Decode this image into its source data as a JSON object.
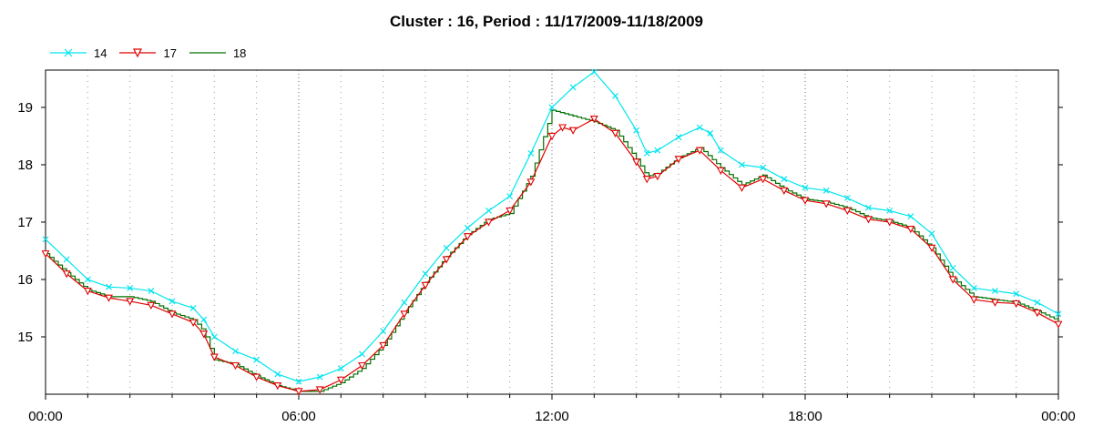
{
  "chart_data": {
    "type": "line",
    "title": "Cluster : 16, Period : 11/17/2009-11/18/2009",
    "xlabel": "",
    "ylabel": "",
    "x_ticks": [
      "00:00",
      "06:00",
      "12:00",
      "18:00",
      "00:00"
    ],
    "x_tick_hours": [
      0,
      6,
      12,
      18,
      24
    ],
    "xlim": [
      0,
      24
    ],
    "ylim": [
      14.0,
      19.65
    ],
    "y_ticks": [
      15,
      16,
      17,
      18,
      19
    ],
    "grid": "dotted",
    "legend": "top-left",
    "series": [
      {
        "name": "14",
        "color": "#00e5ee",
        "marker": "x",
        "points": [
          [
            0,
            16.7
          ],
          [
            0.5,
            16.35
          ],
          [
            1,
            16.0
          ],
          [
            1.5,
            15.87
          ],
          [
            2,
            15.85
          ],
          [
            2.5,
            15.8
          ],
          [
            3,
            15.62
          ],
          [
            3.5,
            15.5
          ],
          [
            3.75,
            15.3
          ],
          [
            4,
            15.0
          ],
          [
            4.5,
            14.75
          ],
          [
            5,
            14.6
          ],
          [
            5.5,
            14.35
          ],
          [
            6,
            14.22
          ],
          [
            6.5,
            14.3
          ],
          [
            7,
            14.45
          ],
          [
            7.5,
            14.7
          ],
          [
            8,
            15.1
          ],
          [
            8.5,
            15.6
          ],
          [
            9,
            16.1
          ],
          [
            9.5,
            16.55
          ],
          [
            10,
            16.9
          ],
          [
            10.5,
            17.2
          ],
          [
            11,
            17.45
          ],
          [
            11.5,
            18.2
          ],
          [
            12,
            19.0
          ],
          [
            12.5,
            19.35
          ],
          [
            13,
            19.62
          ],
          [
            13.5,
            19.2
          ],
          [
            14,
            18.6
          ],
          [
            14.25,
            18.2
          ],
          [
            14.5,
            18.25
          ],
          [
            15,
            18.48
          ],
          [
            15.5,
            18.65
          ],
          [
            15.75,
            18.55
          ],
          [
            16,
            18.25
          ],
          [
            16.5,
            18.0
          ],
          [
            17,
            17.95
          ],
          [
            17.5,
            17.75
          ],
          [
            18,
            17.6
          ],
          [
            18.5,
            17.55
          ],
          [
            19,
            17.42
          ],
          [
            19.5,
            17.25
          ],
          [
            20,
            17.2
          ],
          [
            20.5,
            17.1
          ],
          [
            21,
            16.8
          ],
          [
            21.5,
            16.2
          ],
          [
            22,
            15.85
          ],
          [
            22.5,
            15.8
          ],
          [
            23,
            15.75
          ],
          [
            23.5,
            15.6
          ],
          [
            24,
            15.4
          ]
        ]
      },
      {
        "name": "17",
        "color": "#e00000",
        "marker": "triangle-down",
        "points": [
          [
            0,
            16.45
          ],
          [
            0.5,
            16.1
          ],
          [
            1,
            15.8
          ],
          [
            1.5,
            15.68
          ],
          [
            2,
            15.62
          ],
          [
            2.5,
            15.55
          ],
          [
            3,
            15.4
          ],
          [
            3.5,
            15.25
          ],
          [
            3.75,
            15.05
          ],
          [
            4,
            14.65
          ],
          [
            4.5,
            14.5
          ],
          [
            5,
            14.3
          ],
          [
            5.5,
            14.15
          ],
          [
            6,
            14.05
          ],
          [
            6.5,
            14.08
          ],
          [
            7,
            14.25
          ],
          [
            7.5,
            14.5
          ],
          [
            8,
            14.85
          ],
          [
            8.5,
            15.4
          ],
          [
            9,
            15.9
          ],
          [
            9.5,
            16.35
          ],
          [
            10,
            16.75
          ],
          [
            10.5,
            17.0
          ],
          [
            11,
            17.2
          ],
          [
            11.5,
            17.7
          ],
          [
            12,
            18.5
          ],
          [
            12.25,
            18.65
          ],
          [
            12.5,
            18.6
          ],
          [
            13,
            18.8
          ],
          [
            13.5,
            18.55
          ],
          [
            14,
            18.05
          ],
          [
            14.25,
            17.75
          ],
          [
            14.5,
            17.8
          ],
          [
            15,
            18.1
          ],
          [
            15.5,
            18.25
          ],
          [
            16,
            17.9
          ],
          [
            16.5,
            17.6
          ],
          [
            17,
            17.75
          ],
          [
            17.5,
            17.55
          ],
          [
            18,
            17.38
          ],
          [
            18.5,
            17.32
          ],
          [
            19,
            17.2
          ],
          [
            19.5,
            17.05
          ],
          [
            20,
            17.0
          ],
          [
            20.5,
            16.88
          ],
          [
            21,
            16.55
          ],
          [
            21.5,
            16.0
          ],
          [
            22,
            15.65
          ],
          [
            22.5,
            15.6
          ],
          [
            23,
            15.58
          ],
          [
            23.5,
            15.42
          ],
          [
            24,
            15.22
          ]
        ]
      },
      {
        "name": "18",
        "color": "#007000",
        "marker": "none",
        "points": [
          [
            0,
            16.45
          ],
          [
            0.5,
            16.12
          ],
          [
            1,
            15.82
          ],
          [
            1.5,
            15.7
          ],
          [
            2,
            15.7
          ],
          [
            2.5,
            15.62
          ],
          [
            3,
            15.42
          ],
          [
            3.5,
            15.3
          ],
          [
            3.75,
            15.1
          ],
          [
            4,
            14.6
          ],
          [
            4.5,
            14.52
          ],
          [
            5,
            14.32
          ],
          [
            5.5,
            14.15
          ],
          [
            6,
            14.05
          ],
          [
            6.5,
            14.05
          ],
          [
            7,
            14.2
          ],
          [
            7.5,
            14.45
          ],
          [
            8,
            14.85
          ],
          [
            8.5,
            15.42
          ],
          [
            9,
            15.95
          ],
          [
            9.5,
            16.4
          ],
          [
            10,
            16.78
          ],
          [
            10.5,
            17.05
          ],
          [
            11,
            17.15
          ],
          [
            11.5,
            17.8
          ],
          [
            12,
            18.95
          ],
          [
            12.5,
            18.85
          ],
          [
            13,
            18.75
          ],
          [
            13.5,
            18.6
          ],
          [
            14,
            18.1
          ],
          [
            14.25,
            17.8
          ],
          [
            14.5,
            17.85
          ],
          [
            15,
            18.12
          ],
          [
            15.5,
            18.3
          ],
          [
            16,
            17.95
          ],
          [
            16.5,
            17.65
          ],
          [
            17,
            17.82
          ],
          [
            17.5,
            17.58
          ],
          [
            18,
            17.4
          ],
          [
            18.5,
            17.35
          ],
          [
            19,
            17.25
          ],
          [
            19.5,
            17.08
          ],
          [
            20,
            17.02
          ],
          [
            20.5,
            16.9
          ],
          [
            21,
            16.55
          ],
          [
            21.5,
            16.02
          ],
          [
            22,
            15.7
          ],
          [
            22.5,
            15.65
          ],
          [
            23,
            15.6
          ],
          [
            23.5,
            15.45
          ],
          [
            24,
            15.28
          ]
        ]
      }
    ]
  }
}
